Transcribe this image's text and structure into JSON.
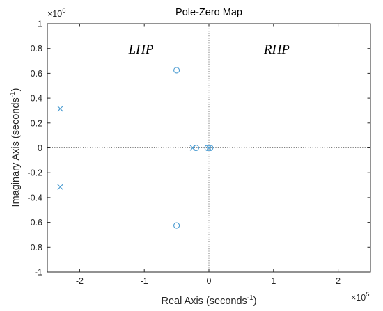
{
  "chart_data": {
    "type": "scatter",
    "title": "Pole-Zero Map",
    "xlabel": "Real Axis (seconds",
    "xlabel_sup": "-1",
    "xlabel_end": ")",
    "ylabel": "Imaginary Axis (seconds",
    "ylabel_sup": "-1",
    "ylabel_end": ")",
    "x_multiplier_base": "×10",
    "x_multiplier_exp": "5",
    "y_multiplier_base": "×10",
    "y_multiplier_exp": "6",
    "xlim": [
      -2.5,
      2.5
    ],
    "ylim": [
      -1,
      1
    ],
    "x_ticks": [
      -2,
      -1,
      0,
      1,
      2
    ],
    "x_tick_labels": [
      "-2",
      "-1",
      "0",
      "1",
      "2"
    ],
    "y_ticks": [
      1,
      0.8,
      0.6,
      0.4,
      0.2,
      0,
      -0.2,
      -0.4,
      -0.6,
      -0.8,
      -1
    ],
    "y_tick_labels": [
      "1",
      "0.8",
      "0.6",
      "0.4",
      "0.2",
      "0",
      "-0.2",
      "-0.4",
      "-0.6",
      "-0.8",
      "-1"
    ],
    "grid": false,
    "zero_lines": true,
    "marker_color": "#4a9bd1",
    "poles": [
      {
        "x": -2.3,
        "y": 0.315
      },
      {
        "x": -2.3,
        "y": -0.315
      },
      {
        "x": -0.25,
        "y": 0
      },
      {
        "x": 0.0,
        "y": 0
      }
    ],
    "zeros": [
      {
        "x": -0.5,
        "y": 0.625
      },
      {
        "x": -0.5,
        "y": -0.625
      },
      {
        "x": -0.2,
        "y": 0
      },
      {
        "x": -0.02,
        "y": 0
      },
      {
        "x": 0.02,
        "y": 0
      }
    ],
    "annotations": [
      {
        "text": "LHP",
        "x": -1.05,
        "y": 0.76
      },
      {
        "text": "RHP",
        "x": 1.05,
        "y": 0.76
      }
    ]
  }
}
